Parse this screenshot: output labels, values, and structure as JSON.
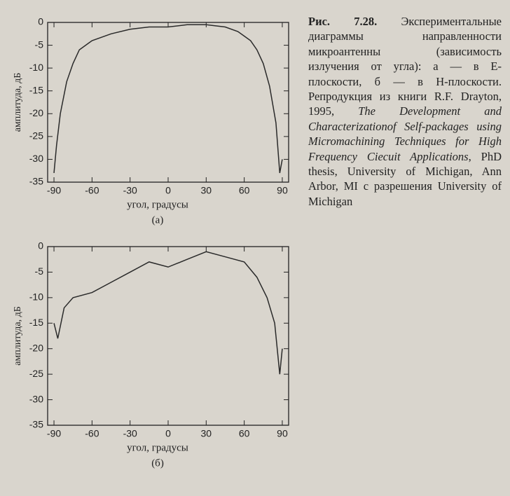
{
  "chart_data": [
    {
      "type": "line",
      "y_label": "амплитуда, дБ",
      "x_label": "угол, градусы",
      "panel_label": "(а)",
      "x": [
        -90,
        -88,
        -85,
        -80,
        -75,
        -70,
        -60,
        -50,
        -45,
        -30,
        -15,
        0,
        15,
        30,
        45,
        55,
        60,
        65,
        70,
        75,
        80,
        85,
        88,
        90
      ],
      "series": [
        {
          "color": "#2a2a2a",
          "values": [
            -33,
            -27,
            -20,
            -13,
            -9,
            -6,
            -4,
            -3,
            -2.5,
            -1.5,
            -1,
            -1,
            -0.5,
            -0.5,
            -1,
            -2,
            -3,
            -4,
            -6,
            -9,
            -14,
            -22,
            -33,
            -30
          ]
        }
      ],
      "xlim": [
        -95,
        95
      ],
      "ylim": [
        -35,
        0
      ],
      "xticks": [
        -90,
        -60,
        -30,
        0,
        30,
        60,
        90
      ],
      "yticks": [
        0,
        -5,
        -10,
        -15,
        -20,
        -25,
        -30,
        -35
      ]
    },
    {
      "type": "line",
      "y_label": "амплитуда, дБ",
      "x_label": "угол, градусы",
      "panel_label": "(б)",
      "x": [
        -90,
        -87,
        -82,
        -75,
        -60,
        -45,
        -30,
        -15,
        0,
        15,
        30,
        45,
        60,
        70,
        78,
        84,
        88,
        90
      ],
      "series": [
        {
          "color": "#2a2a2a",
          "values": [
            -15,
            -18,
            -12,
            -10,
            -9,
            -7,
            -5,
            -3,
            -4,
            -2.5,
            -1,
            -2,
            -3,
            -6,
            -10,
            -15,
            -25,
            -20
          ]
        }
      ],
      "xlim": [
        -95,
        95
      ],
      "ylim": [
        -35,
        0
      ],
      "xticks": [
        -90,
        -60,
        -30,
        0,
        30,
        60,
        90
      ],
      "yticks": [
        0,
        -5,
        -10,
        -15,
        -20,
        -25,
        -30,
        -35
      ]
    }
  ],
  "caption": {
    "label": "Рис. 7.28.",
    "text1": "Экспериментальные диаграммы направленности микроантенны (зависимость излучения от угла): а — в E-плоскости, б — в H-плоскости. Репродукция из книги R.F. Drayton, 1995,",
    "italic": "The Development and Characterizationof Self-packages using Micromachining Techniques for High Frequency Ciecuit Applications",
    "text2": ", PhD thesis, University of Michigan, Ann Arbor, MI с разрешения University of Michigan"
  }
}
